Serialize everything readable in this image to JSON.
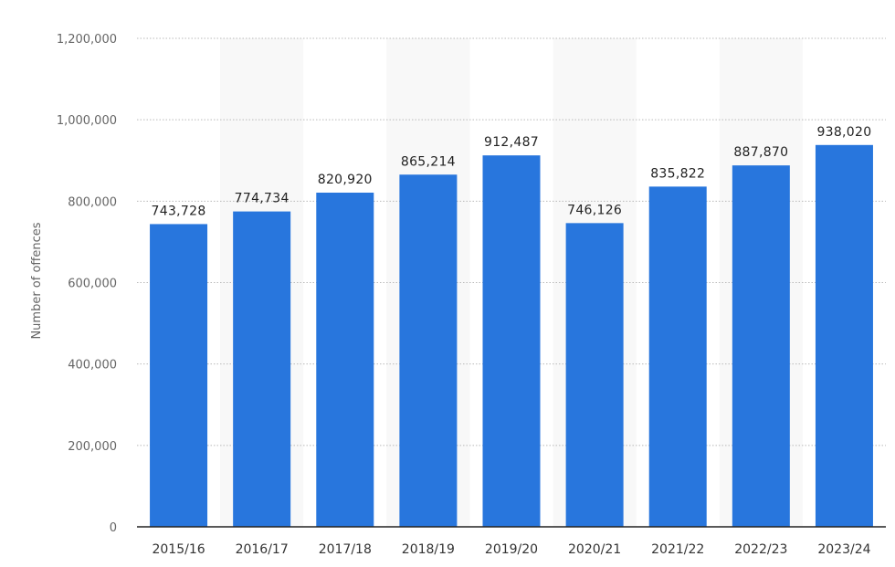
{
  "chart_data": {
    "type": "bar",
    "categories": [
      "2015/16",
      "2016/17",
      "2017/18",
      "2018/19",
      "2019/20",
      "2020/21",
      "2021/22",
      "2022/23",
      "2023/24"
    ],
    "values": [
      743728,
      774734,
      820920,
      865214,
      912487,
      746126,
      835822,
      887870,
      938020
    ],
    "value_labels": [
      "743,728",
      "774,734",
      "820,920",
      "865,214",
      "912,487",
      "746,126",
      "835,822",
      "887,870",
      "938,020"
    ],
    "ylabel": "Number of offences",
    "ylim": [
      0,
      1200000
    ],
    "yticks": [
      0,
      200000,
      400000,
      600000,
      800000,
      1000000,
      1200000
    ],
    "ytick_labels": [
      "0",
      "200,000",
      "400,000",
      "600,000",
      "800,000",
      "1,000,000",
      "1,200,000"
    ],
    "grid": true,
    "bar_color": "#2876dd",
    "band_color": "#f8f8f8"
  }
}
